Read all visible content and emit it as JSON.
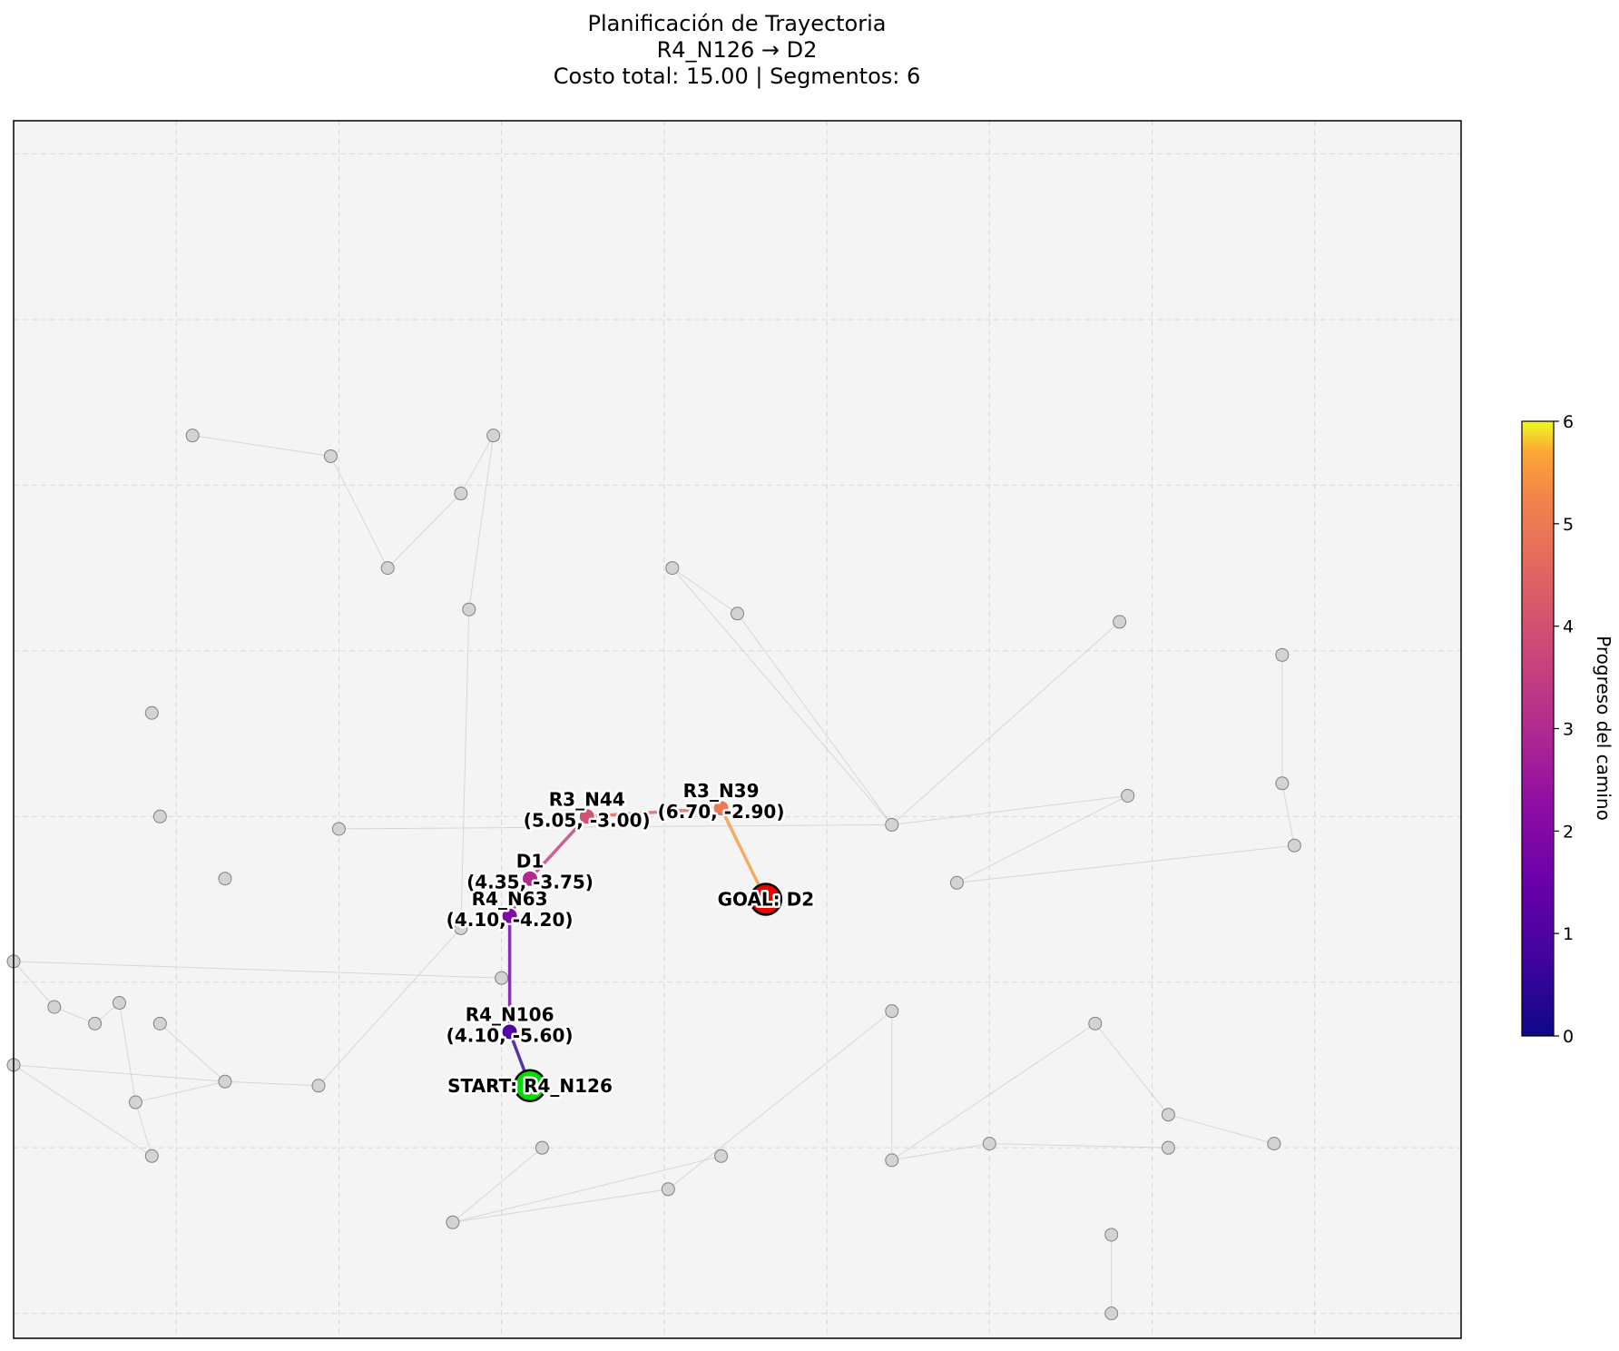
{
  "chart_data": {
    "type": "scatter",
    "title_lines": [
      "Planificación de Trayectoria",
      "R4_N126 → D2",
      "Costo total: 15.00 | Segmentos: 6"
    ],
    "grid": true,
    "axes_visible": false,
    "xlim": [
      -2.0,
      15.8
    ],
    "ylim": [
      -9.3,
      5.4
    ],
    "graph_nodes": [
      [
        0.2,
        1.6
      ],
      [
        1.9,
        1.35
      ],
      [
        3.5,
        0.9
      ],
      [
        2.6,
        0.0
      ],
      [
        3.9,
        1.6
      ],
      [
        3.6,
        -0.5
      ],
      [
        -0.3,
        -1.75
      ],
      [
        -0.2,
        -3.0
      ],
      [
        0.6,
        -3.75
      ],
      [
        2.0,
        -3.15
      ],
      [
        6.1,
        0.0
      ],
      [
        6.9,
        -0.55
      ],
      [
        8.8,
        -3.1
      ],
      [
        9.6,
        -3.8
      ],
      [
        11.7,
        -2.75
      ],
      [
        11.6,
        -0.65
      ],
      [
        13.75,
        -3.35
      ],
      [
        13.6,
        -2.6
      ],
      [
        13.6,
        -1.05
      ],
      [
        4.0,
        -4.95
      ],
      [
        -2.0,
        -4.75
      ],
      [
        -1.5,
        -5.3
      ],
      [
        -1.0,
        -5.5
      ],
      [
        -0.7,
        -5.25
      ],
      [
        -0.2,
        -5.5
      ],
      [
        -0.5,
        -6.45
      ],
      [
        -0.3,
        -7.1
      ],
      [
        -2.0,
        -6.0
      ],
      [
        0.6,
        -6.2
      ],
      [
        1.75,
        -6.25
      ],
      [
        3.5,
        -4.35
      ],
      [
        3.4,
        -7.9
      ],
      [
        4.5,
        -7.0
      ],
      [
        6.05,
        -7.5
      ],
      [
        6.7,
        -7.1
      ],
      [
        8.8,
        -5.35
      ],
      [
        8.8,
        -7.15
      ],
      [
        11.3,
        -5.5
      ],
      [
        10.0,
        -6.95
      ],
      [
        12.2,
        -7.0
      ],
      [
        11.5,
        -8.05
      ],
      [
        11.5,
        -9.0
      ],
      [
        12.2,
        -6.6
      ],
      [
        13.5,
        -6.95
      ]
    ],
    "graph_edges": [
      [
        0,
        1
      ],
      [
        1,
        3
      ],
      [
        3,
        2
      ],
      [
        2,
        4
      ],
      [
        4,
        5
      ],
      [
        5,
        30
      ],
      [
        30,
        29
      ],
      [
        29,
        28
      ],
      [
        28,
        27
      ],
      [
        28,
        25
      ],
      [
        28,
        24
      ],
      [
        27,
        26
      ],
      [
        26,
        25
      ],
      [
        25,
        23
      ],
      [
        23,
        22
      ],
      [
        22,
        21
      ],
      [
        21,
        20
      ],
      [
        20,
        19
      ],
      [
        12,
        11
      ],
      [
        11,
        10
      ],
      [
        10,
        12
      ],
      [
        12,
        14
      ],
      [
        14,
        13
      ],
      [
        13,
        16
      ],
      [
        16,
        17
      ],
      [
        17,
        18
      ],
      [
        12,
        15
      ],
      [
        12,
        9
      ],
      [
        31,
        32
      ],
      [
        31,
        33
      ],
      [
        31,
        34
      ],
      [
        33,
        35
      ],
      [
        35,
        36
      ],
      [
        36,
        38
      ],
      [
        38,
        39
      ],
      [
        36,
        37
      ],
      [
        37,
        42
      ],
      [
        42,
        43
      ],
      [
        40,
        41
      ],
      [
        42,
        44
      ]
    ],
    "colorbar": {
      "label": "Progreso del camino",
      "min": 0,
      "max": 6,
      "ticks": [
        "0",
        "1",
        "2",
        "3",
        "4",
        "5",
        "6"
      ],
      "colormap": "plasma"
    },
    "path": [
      {
        "name": "R4_N126",
        "x": 4.35,
        "y": -6.25,
        "role": "start",
        "label": "START: R4_N126",
        "color": "#00dd00"
      },
      {
        "name": "R4_N106",
        "x": 4.1,
        "y": -5.6,
        "role": "waypoint",
        "label": "R4_N106",
        "coords": "(4.10, -5.60)"
      },
      {
        "name": "R4_N63",
        "x": 4.1,
        "y": -4.2,
        "role": "waypoint",
        "label": "R4_N63",
        "coords": "(4.10, -4.20)"
      },
      {
        "name": "D1",
        "x": 4.35,
        "y": -3.75,
        "role": "waypoint",
        "label": "D1",
        "coords": "(4.35, -3.75)"
      },
      {
        "name": "R3_N44",
        "x": 5.05,
        "y": -3.0,
        "role": "waypoint",
        "label": "R3_N44",
        "coords": "(5.05, -3.00)"
      },
      {
        "name": "R3_N39",
        "x": 6.7,
        "y": -2.9,
        "role": "waypoint",
        "label": "R3_N39",
        "coords": "(6.70, -2.90)"
      },
      {
        "name": "D2",
        "x": 7.25,
        "y": -4.0,
        "role": "goal",
        "label": "GOAL: D2",
        "color": "#ee0000"
      }
    ]
  }
}
